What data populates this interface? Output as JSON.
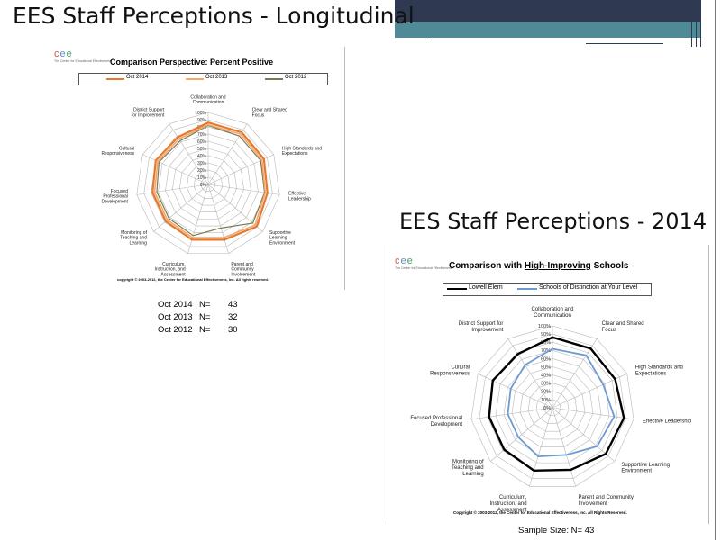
{
  "slide": {
    "title_left": "EES Staff Perceptions - Longitudinal",
    "title_right": "EES Staff Perceptions - 2014"
  },
  "logo": {
    "letters": "cee",
    "subtitle": "The Center for Educational Effectiveness"
  },
  "theme": {
    "dark_blue": "#2f3a52",
    "teal": "#4f8a96",
    "orange1": "#e8792a",
    "orange2": "#f2a86d",
    "olive": "#7a7a50",
    "black": "#000000",
    "blue": "#6c9bd1"
  },
  "n_table": [
    {
      "label": "Oct 2014",
      "eq": "N=",
      "value": "43"
    },
    {
      "label": "Oct 2013",
      "eq": "N=",
      "value": "32"
    },
    {
      "label": "Oct 2012",
      "eq": "N=",
      "value": "30"
    }
  ],
  "sample_size": "Sample Size: N= 43",
  "chart_data": [
    {
      "type": "radar",
      "title": "Comparison Perspective: Percent Positive",
      "axes": [
        "Collaboration and Communication",
        "Clear and Shared Focus",
        "High Standards and Expectations",
        "Effective Leadership",
        "Supportive Learning Environment",
        "Parent and Community Involvement",
        "Curriculum, Instruction, and Assessment",
        "Monitoring of Teaching and Learning",
        "Focused Professional Development",
        "Cultural Responsiveness",
        "District Support for Improvement"
      ],
      "tick_labels": [
        "0%",
        "10%",
        "20%",
        "30%",
        "40%",
        "50%",
        "60%",
        "70%",
        "80%",
        "90%",
        "100%"
      ],
      "range": [
        0,
        100
      ],
      "series": [
        {
          "name": "Oct 2014",
          "color": "#e8792a",
          "values": [
            86,
            86,
            85,
            83,
            89,
            80,
            80,
            78,
            78,
            80,
            78
          ]
        },
        {
          "name": "Oct 2013",
          "color": "#f2a86d",
          "values": [
            83,
            83,
            82,
            80,
            86,
            77,
            77,
            75,
            75,
            77,
            75
          ]
        },
        {
          "name": "Oct 2012",
          "color": "#7a7a50",
          "values": [
            82,
            80,
            80,
            79,
            82,
            63,
            74,
            72,
            72,
            75,
            72
          ]
        }
      ],
      "copyright": "copyright © 2003-2012, the Center for Educational Effectiveness, Inc. All rights reserved."
    },
    {
      "type": "radar",
      "title_prefix": "Comparison with ",
      "title_underlined": "High-Improving",
      "title_suffix": " Schools",
      "axes": [
        "Collaboration and Communication",
        "Clear and Shared Focus",
        "High Standards and Expectations",
        "Effective Leadership",
        "Supportive Learning Environment",
        "Parent and Community Involvement",
        "Curriculum, Instruction, and Assessment",
        "Monitoring of Teaching and Learning",
        "Focused Professional Development",
        "Cultural Responsiveness",
        "District Support for Improvement"
      ],
      "tick_labels": [
        "0%",
        "10%",
        "20%",
        "30%",
        "40%",
        "50%",
        "60%",
        "70%",
        "80%",
        "90%",
        "100%"
      ],
      "range": [
        0,
        100
      ],
      "series": [
        {
          "name": "Lowell Elem",
          "color": "#000000",
          "values": [
            86,
            86,
            84,
            88,
            86,
            79,
            80,
            78,
            78,
            80,
            78
          ]
        },
        {
          "name": "Schools of Distinction at Your Level",
          "color": "#6c9bd1",
          "values": [
            72,
            76,
            68,
            76,
            72,
            60,
            62,
            55,
            55,
            56,
            62
          ]
        }
      ],
      "copyright": "Copyright © 2003-2012, the Center for Educational Effectiveness, Inc. All Rights Reserved."
    }
  ]
}
